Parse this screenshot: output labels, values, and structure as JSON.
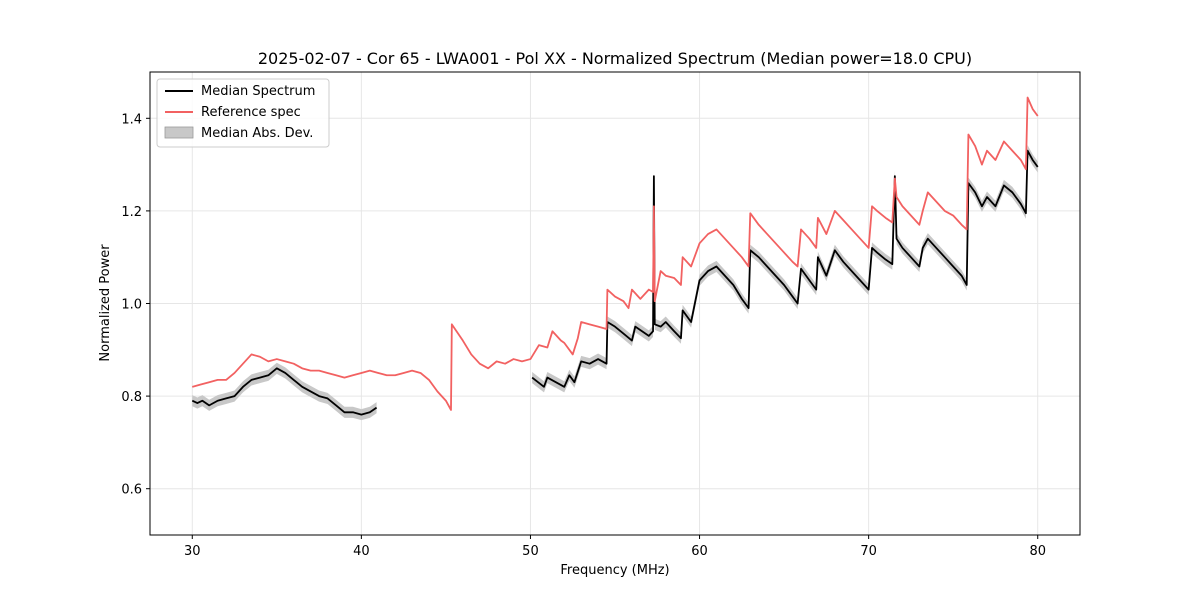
{
  "chart_data": {
    "type": "line",
    "title": "2025-02-07 - Cor 65 - LWA001 - Pol XX - Normalized Spectrum (Median power=18.0 CPU)",
    "xlabel": "Frequency (MHz)",
    "ylabel": "Normalized Power",
    "xlim": [
      27.5,
      82.5
    ],
    "ylim": [
      0.5,
      1.5
    ],
    "xticks": [
      30,
      40,
      50,
      60,
      70,
      80
    ],
    "yticks": [
      0.6,
      0.8,
      1.0,
      1.2,
      1.4
    ],
    "xtick_labels": [
      "30",
      "40",
      "50",
      "60",
      "70",
      "80"
    ],
    "ytick_labels": [
      "0.6",
      "0.8",
      "1.0",
      "1.2",
      "1.4"
    ],
    "grid": true,
    "legend_position": "top-left",
    "legend": [
      "Median Spectrum",
      "Reference spec",
      "Median Abs. Dev."
    ],
    "colors": {
      "median": "#000000",
      "reference": "#f26161",
      "mad": "#c8c8c8",
      "overlap": "#7a0000"
    },
    "series": [
      {
        "name": "Median Spectrum",
        "segments": [
          [
            [
              30,
              0.79
            ],
            [
              30.3,
              0.785
            ],
            [
              30.6,
              0.79
            ],
            [
              31,
              0.78
            ],
            [
              31.5,
              0.79
            ],
            [
              32,
              0.795
            ],
            [
              32.5,
              0.8
            ],
            [
              33,
              0.82
            ],
            [
              33.5,
              0.835
            ],
            [
              34,
              0.84
            ],
            [
              34.5,
              0.845
            ],
            [
              35,
              0.86
            ],
            [
              35.5,
              0.85
            ],
            [
              36,
              0.835
            ],
            [
              36.5,
              0.82
            ],
            [
              37,
              0.81
            ],
            [
              37.5,
              0.8
            ],
            [
              38,
              0.795
            ],
            [
              38.5,
              0.78
            ],
            [
              39,
              0.765
            ],
            [
              39.5,
              0.765
            ],
            [
              40,
              0.76
            ],
            [
              40.5,
              0.765
            ],
            [
              40.9,
              0.775
            ]
          ],
          [
            [
              50.1,
              0.84
            ],
            [
              50.8,
              0.82
            ],
            [
              51,
              0.84
            ],
            [
              51.5,
              0.83
            ],
            [
              52,
              0.82
            ],
            [
              52.3,
              0.845
            ],
            [
              52.6,
              0.83
            ],
            [
              53,
              0.875
            ],
            [
              53.5,
              0.87
            ],
            [
              54,
              0.88
            ],
            [
              54.5,
              0.87
            ],
            [
              54.55,
              0.96
            ],
            [
              55,
              0.95
            ],
            [
              55.5,
              0.935
            ],
            [
              56,
              0.92
            ],
            [
              56.2,
              0.95
            ],
            [
              56.6,
              0.94
            ],
            [
              57,
              0.93
            ],
            [
              57.25,
              0.94
            ],
            [
              57.3,
              1.275
            ],
            [
              57.35,
              0.955
            ],
            [
              57.7,
              0.95
            ],
            [
              58,
              0.96
            ],
            [
              58.5,
              0.94
            ],
            [
              58.9,
              0.925
            ],
            [
              59,
              0.985
            ],
            [
              59.5,
              0.96
            ],
            [
              60,
              1.05
            ],
            [
              60.5,
              1.07
            ],
            [
              61,
              1.08
            ],
            [
              61.5,
              1.06
            ],
            [
              62,
              1.04
            ],
            [
              62.5,
              1.01
            ],
            [
              62.9,
              0.99
            ],
            [
              63,
              1.115
            ],
            [
              63.5,
              1.1
            ],
            [
              64,
              1.08
            ],
            [
              64.5,
              1.06
            ],
            [
              65,
              1.04
            ],
            [
              65.5,
              1.015
            ],
            [
              65.8,
              1.0
            ],
            [
              66,
              1.075
            ],
            [
              66.5,
              1.05
            ],
            [
              66.9,
              1.03
            ],
            [
              67,
              1.1
            ],
            [
              67.5,
              1.06
            ],
            [
              68,
              1.115
            ],
            [
              68.5,
              1.09
            ],
            [
              69,
              1.07
            ],
            [
              69.5,
              1.05
            ],
            [
              70,
              1.03
            ],
            [
              70.2,
              1.12
            ],
            [
              70.5,
              1.11
            ],
            [
              71,
              1.095
            ],
            [
              71.4,
              1.085
            ],
            [
              71.55,
              1.275
            ],
            [
              71.65,
              1.14
            ],
            [
              72,
              1.12
            ],
            [
              72.5,
              1.1
            ],
            [
              73,
              1.08
            ],
            [
              73.2,
              1.12
            ],
            [
              73.5,
              1.14
            ],
            [
              74,
              1.12
            ],
            [
              74.5,
              1.1
            ],
            [
              75,
              1.08
            ],
            [
              75.5,
              1.06
            ],
            [
              75.8,
              1.04
            ],
            [
              75.9,
              1.26
            ],
            [
              76.3,
              1.24
            ],
            [
              76.7,
              1.21
            ],
            [
              77,
              1.23
            ],
            [
              77.5,
              1.21
            ],
            [
              78,
              1.255
            ],
            [
              78.5,
              1.24
            ],
            [
              79,
              1.215
            ],
            [
              79.3,
              1.195
            ],
            [
              79.4,
              1.33
            ],
            [
              79.7,
              1.31
            ],
            [
              80,
              1.295
            ]
          ]
        ]
      },
      {
        "name": "Reference spec",
        "segments": [
          [
            [
              30,
              0.82
            ],
            [
              30.5,
              0.825
            ],
            [
              31,
              0.83
            ],
            [
              31.5,
              0.835
            ],
            [
              32,
              0.835
            ],
            [
              32.5,
              0.85
            ],
            [
              33,
              0.87
            ],
            [
              33.5,
              0.89
            ],
            [
              34,
              0.885
            ],
            [
              34.5,
              0.875
            ],
            [
              35,
              0.88
            ],
            [
              35.5,
              0.875
            ],
            [
              36,
              0.87
            ],
            [
              36.5,
              0.86
            ],
            [
              37,
              0.855
            ],
            [
              37.5,
              0.855
            ],
            [
              38,
              0.85
            ],
            [
              38.5,
              0.845
            ],
            [
              39,
              0.84
            ],
            [
              39.5,
              0.845
            ],
            [
              40,
              0.85
            ],
            [
              40.5,
              0.855
            ],
            [
              41,
              0.85
            ],
            [
              41.5,
              0.845
            ],
            [
              42,
              0.845
            ],
            [
              42.5,
              0.85
            ],
            [
              43,
              0.855
            ],
            [
              43.5,
              0.85
            ],
            [
              44,
              0.835
            ],
            [
              44.5,
              0.81
            ],
            [
              45,
              0.79
            ],
            [
              45.3,
              0.77
            ],
            [
              45.35,
              0.955
            ],
            [
              46,
              0.92
            ],
            [
              46.5,
              0.89
            ],
            [
              47,
              0.87
            ],
            [
              47.5,
              0.86
            ],
            [
              48,
              0.875
            ],
            [
              48.5,
              0.87
            ],
            [
              49,
              0.88
            ],
            [
              49.5,
              0.875
            ],
            [
              50,
              0.88
            ],
            [
              50.5,
              0.91
            ],
            [
              51,
              0.905
            ],
            [
              51.3,
              0.94
            ],
            [
              51.8,
              0.92
            ],
            [
              52,
              0.915
            ],
            [
              52.5,
              0.89
            ],
            [
              52.8,
              0.925
            ],
            [
              53,
              0.96
            ],
            [
              53.5,
              0.955
            ],
            [
              54,
              0.95
            ],
            [
              54.5,
              0.945
            ],
            [
              54.55,
              1.03
            ],
            [
              55,
              1.015
            ],
            [
              55.5,
              1.005
            ],
            [
              55.8,
              0.99
            ],
            [
              56,
              1.03
            ],
            [
              56.5,
              1.01
            ],
            [
              57,
              1.03
            ],
            [
              57.25,
              1.025
            ],
            [
              57.3,
              1.21
            ],
            [
              57.35,
              1.005
            ],
            [
              57.7,
              1.07
            ],
            [
              58,
              1.06
            ],
            [
              58.5,
              1.055
            ],
            [
              58.9,
              1.04
            ],
            [
              59,
              1.1
            ],
            [
              59.5,
              1.08
            ],
            [
              60,
              1.13
            ],
            [
              60.5,
              1.15
            ],
            [
              61,
              1.16
            ],
            [
              61.5,
              1.14
            ],
            [
              62,
              1.12
            ],
            [
              62.5,
              1.1
            ],
            [
              62.9,
              1.08
            ],
            [
              63,
              1.195
            ],
            [
              63.5,
              1.17
            ],
            [
              64,
              1.15
            ],
            [
              64.5,
              1.13
            ],
            [
              65,
              1.11
            ],
            [
              65.5,
              1.09
            ],
            [
              65.8,
              1.08
            ],
            [
              66,
              1.16
            ],
            [
              66.5,
              1.14
            ],
            [
              66.9,
              1.12
            ],
            [
              67,
              1.185
            ],
            [
              67.5,
              1.15
            ],
            [
              68,
              1.2
            ],
            [
              68.5,
              1.18
            ],
            [
              69,
              1.16
            ],
            [
              69.5,
              1.14
            ],
            [
              70,
              1.12
            ],
            [
              70.2,
              1.21
            ],
            [
              70.5,
              1.2
            ],
            [
              71,
              1.185
            ],
            [
              71.4,
              1.175
            ],
            [
              71.55,
              1.27
            ],
            [
              71.65,
              1.23
            ],
            [
              72,
              1.21
            ],
            [
              72.5,
              1.19
            ],
            [
              73,
              1.17
            ],
            [
              73.2,
              1.2
            ],
            [
              73.5,
              1.24
            ],
            [
              74,
              1.22
            ],
            [
              74.5,
              1.2
            ],
            [
              75,
              1.19
            ],
            [
              75.5,
              1.17
            ],
            [
              75.8,
              1.16
            ],
            [
              75.9,
              1.365
            ],
            [
              76.3,
              1.34
            ],
            [
              76.7,
              1.3
            ],
            [
              77,
              1.33
            ],
            [
              77.5,
              1.31
            ],
            [
              78,
              1.35
            ],
            [
              78.5,
              1.33
            ],
            [
              79,
              1.31
            ],
            [
              79.3,
              1.29
            ],
            [
              79.4,
              1.445
            ],
            [
              79.7,
              1.42
            ],
            [
              80,
              1.405
            ]
          ]
        ]
      }
    ],
    "mad_band_halfwidth": 0.012
  }
}
